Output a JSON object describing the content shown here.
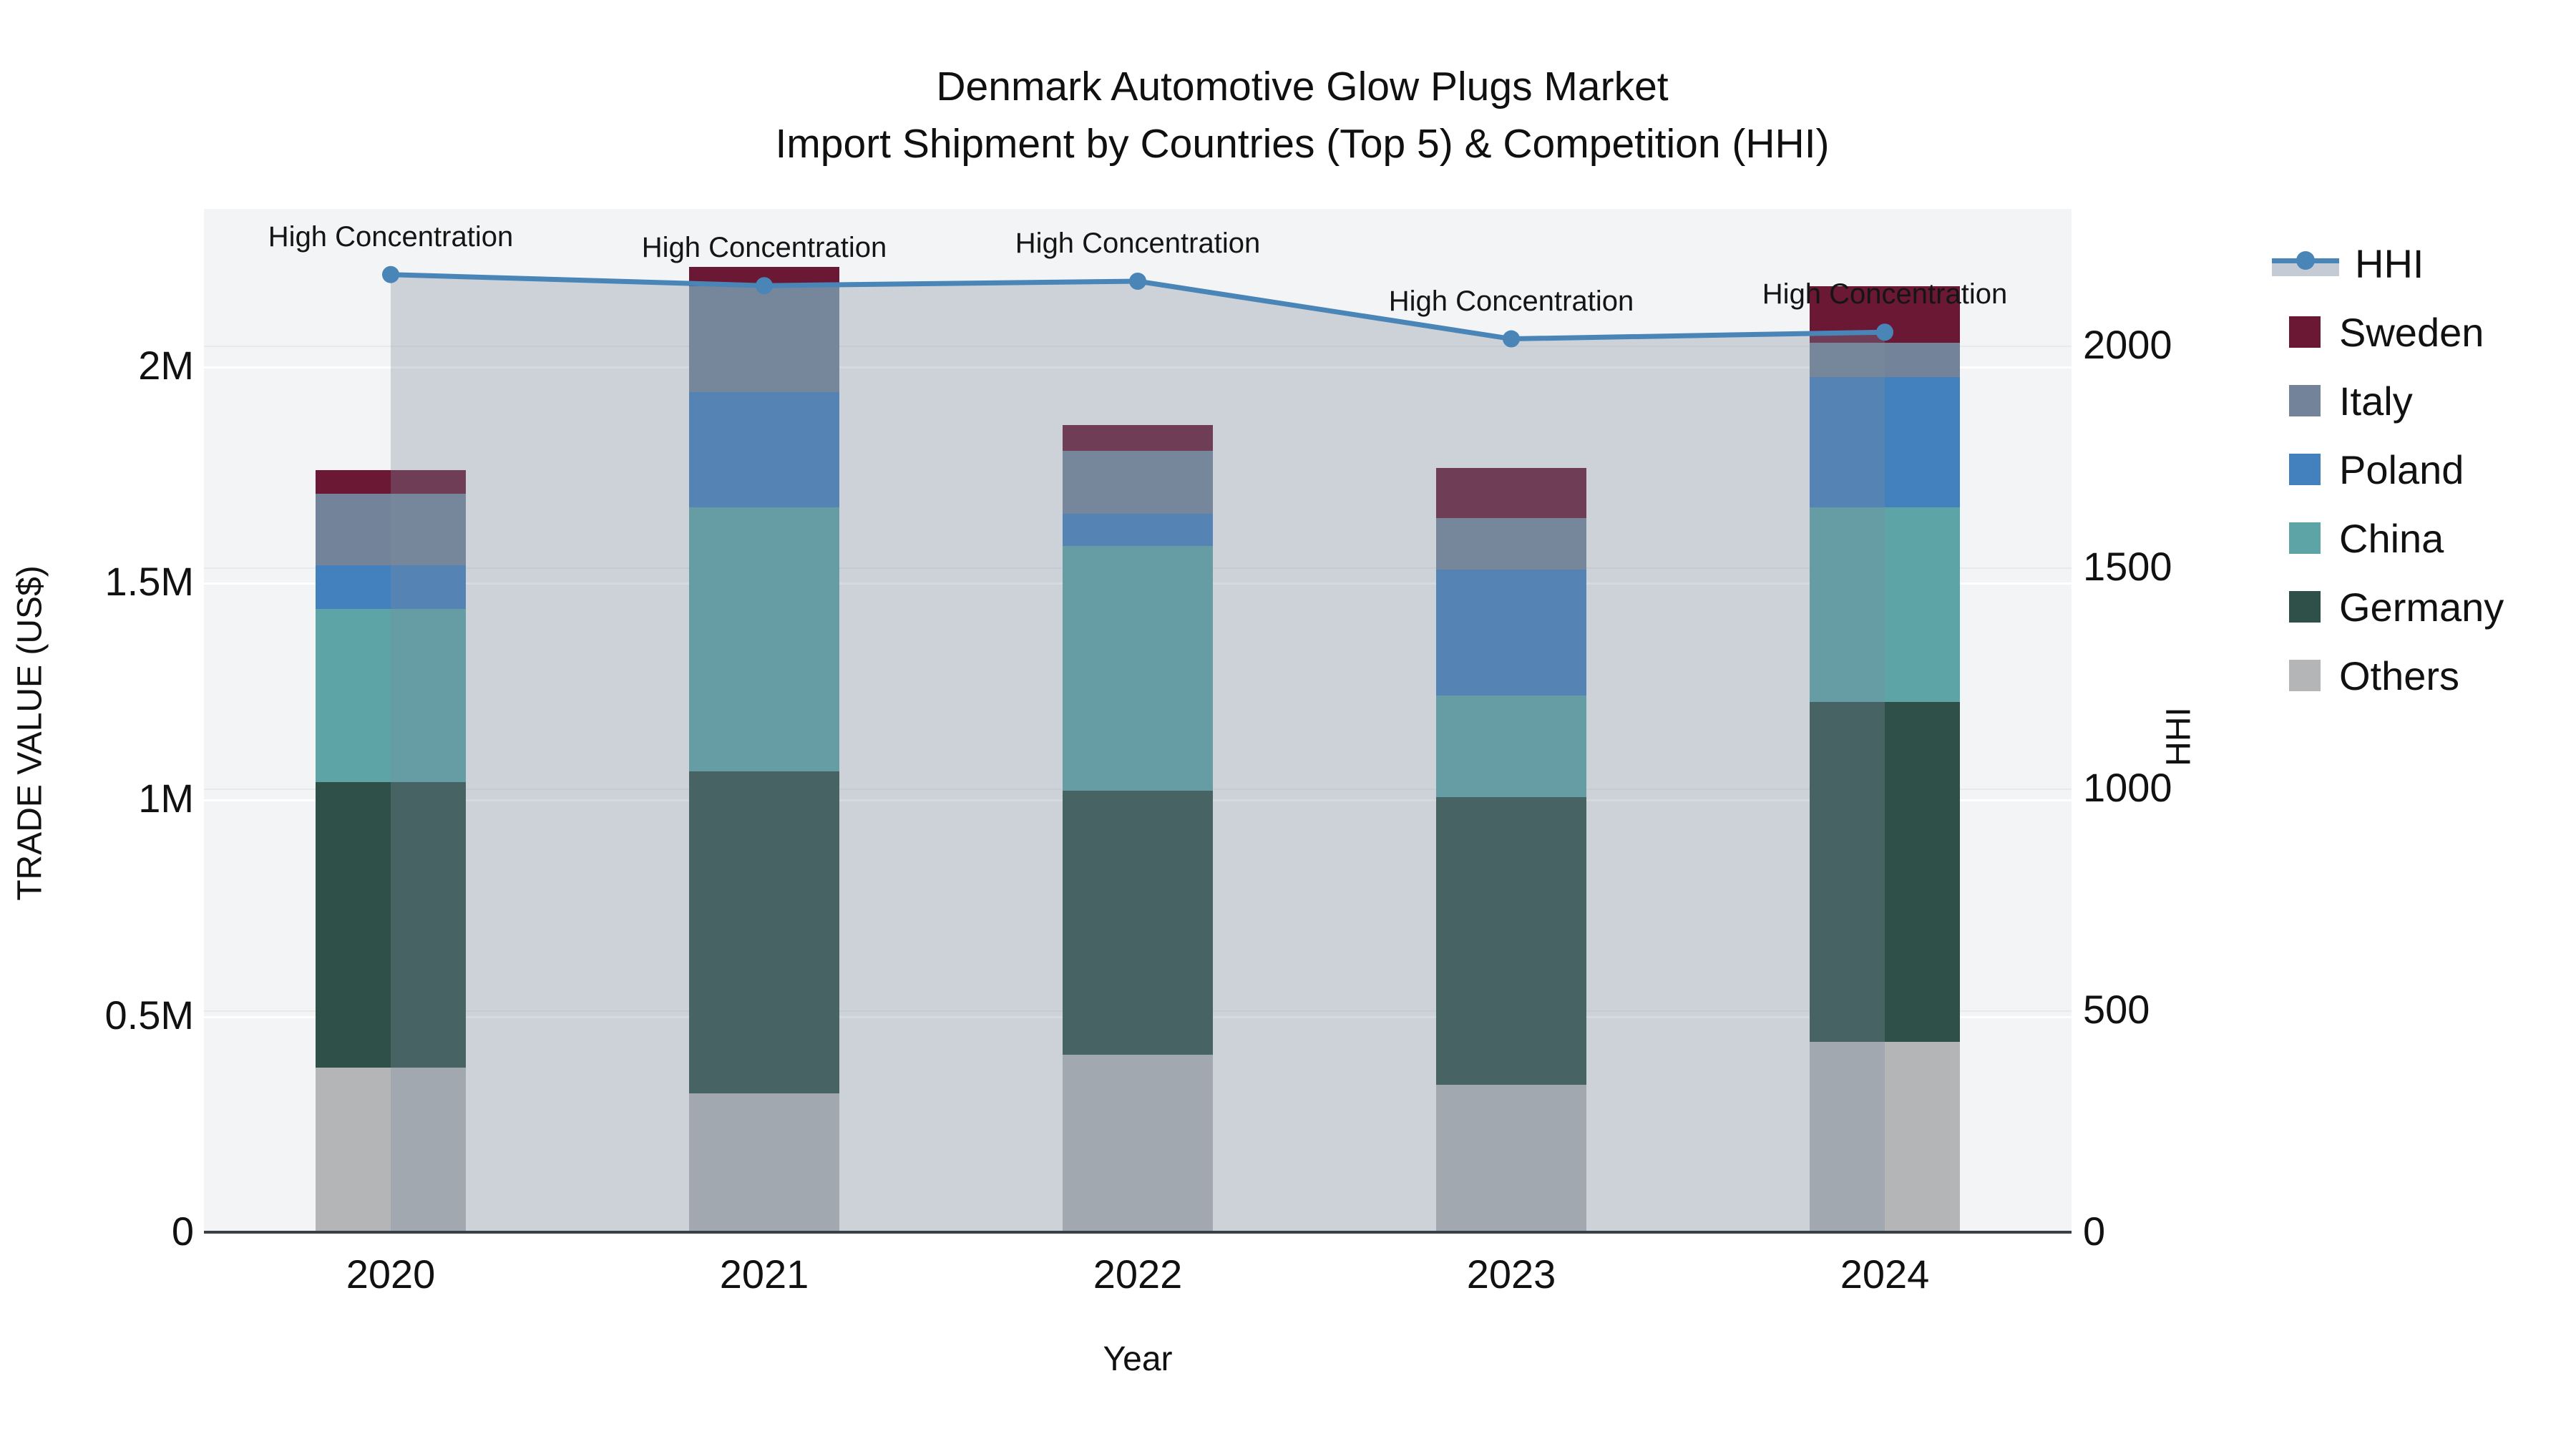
{
  "chart_data": {
    "type": "combo-stacked-bar-line",
    "title": "Denmark Automotive Glow Plugs Market",
    "subtitle": "Import Shipment by Countries (Top 5) & Competition (HHI)",
    "xlabel": "Year",
    "ylabel_left": "TRADE VALUE (US$)",
    "ylabel_right": "HHI",
    "categories": [
      "2020",
      "2021",
      "2022",
      "2023",
      "2024"
    ],
    "series": [
      {
        "name": "Others",
        "color": "#B3B5B7",
        "values": [
          380000,
          320000,
          410000,
          340000,
          440000
        ]
      },
      {
        "name": "Germany",
        "color": "#2E5049",
        "values": [
          660000,
          745000,
          610000,
          665000,
          785000
        ]
      },
      {
        "name": "China",
        "color": "#5CA4A6",
        "values": [
          400000,
          610000,
          565000,
          235000,
          450000
        ]
      },
      {
        "name": "Poland",
        "color": "#4380BE",
        "values": [
          100000,
          265000,
          75000,
          290000,
          300000
        ]
      },
      {
        "name": "Italy",
        "color": "#73849A",
        "values": [
          165000,
          245000,
          145000,
          120000,
          80000
        ]
      },
      {
        "name": "Sweden",
        "color": "#6B1834",
        "values": [
          55000,
          45000,
          60000,
          115000,
          130000
        ]
      }
    ],
    "line": {
      "name": "HHI",
      "color": "#4A85B8",
      "fill": "rgba(125,140,160,0.32)",
      "values": [
        2160,
        2135,
        2145,
        2015,
        2030
      ]
    },
    "annotations": [
      "High Concentration",
      "High Concentration",
      "High Concentration",
      "High Concentration",
      "High Concentration"
    ],
    "axes": {
      "left": {
        "max": 2363636,
        "ticks": [
          {
            "label": "0",
            "value": 0
          },
          {
            "label": "0.5M",
            "value": 500000
          },
          {
            "label": "1M",
            "value": 1000000
          },
          {
            "label": "1.5M",
            "value": 1500000
          },
          {
            "label": "2M",
            "value": 2000000
          }
        ]
      },
      "right": {
        "max": 2308,
        "ticks": [
          {
            "label": "0",
            "value": 0
          },
          {
            "label": "500",
            "value": 500
          },
          {
            "label": "1000",
            "value": 1000
          },
          {
            "label": "1500",
            "value": 1500
          },
          {
            "label": "2000",
            "value": 2000
          }
        ]
      }
    },
    "legend": [
      {
        "label": "HHI",
        "type": "line",
        "color": "#4A85B8"
      },
      {
        "label": "Sweden",
        "type": "swatch",
        "color": "#6B1834"
      },
      {
        "label": "Italy",
        "type": "swatch",
        "color": "#73849A"
      },
      {
        "label": "Poland",
        "type": "swatch",
        "color": "#4380BE"
      },
      {
        "label": "China",
        "type": "swatch",
        "color": "#5CA4A6"
      },
      {
        "label": "Germany",
        "type": "swatch",
        "color": "#2E5049"
      },
      {
        "label": "Others",
        "type": "swatch",
        "color": "#B3B5B7"
      }
    ]
  }
}
